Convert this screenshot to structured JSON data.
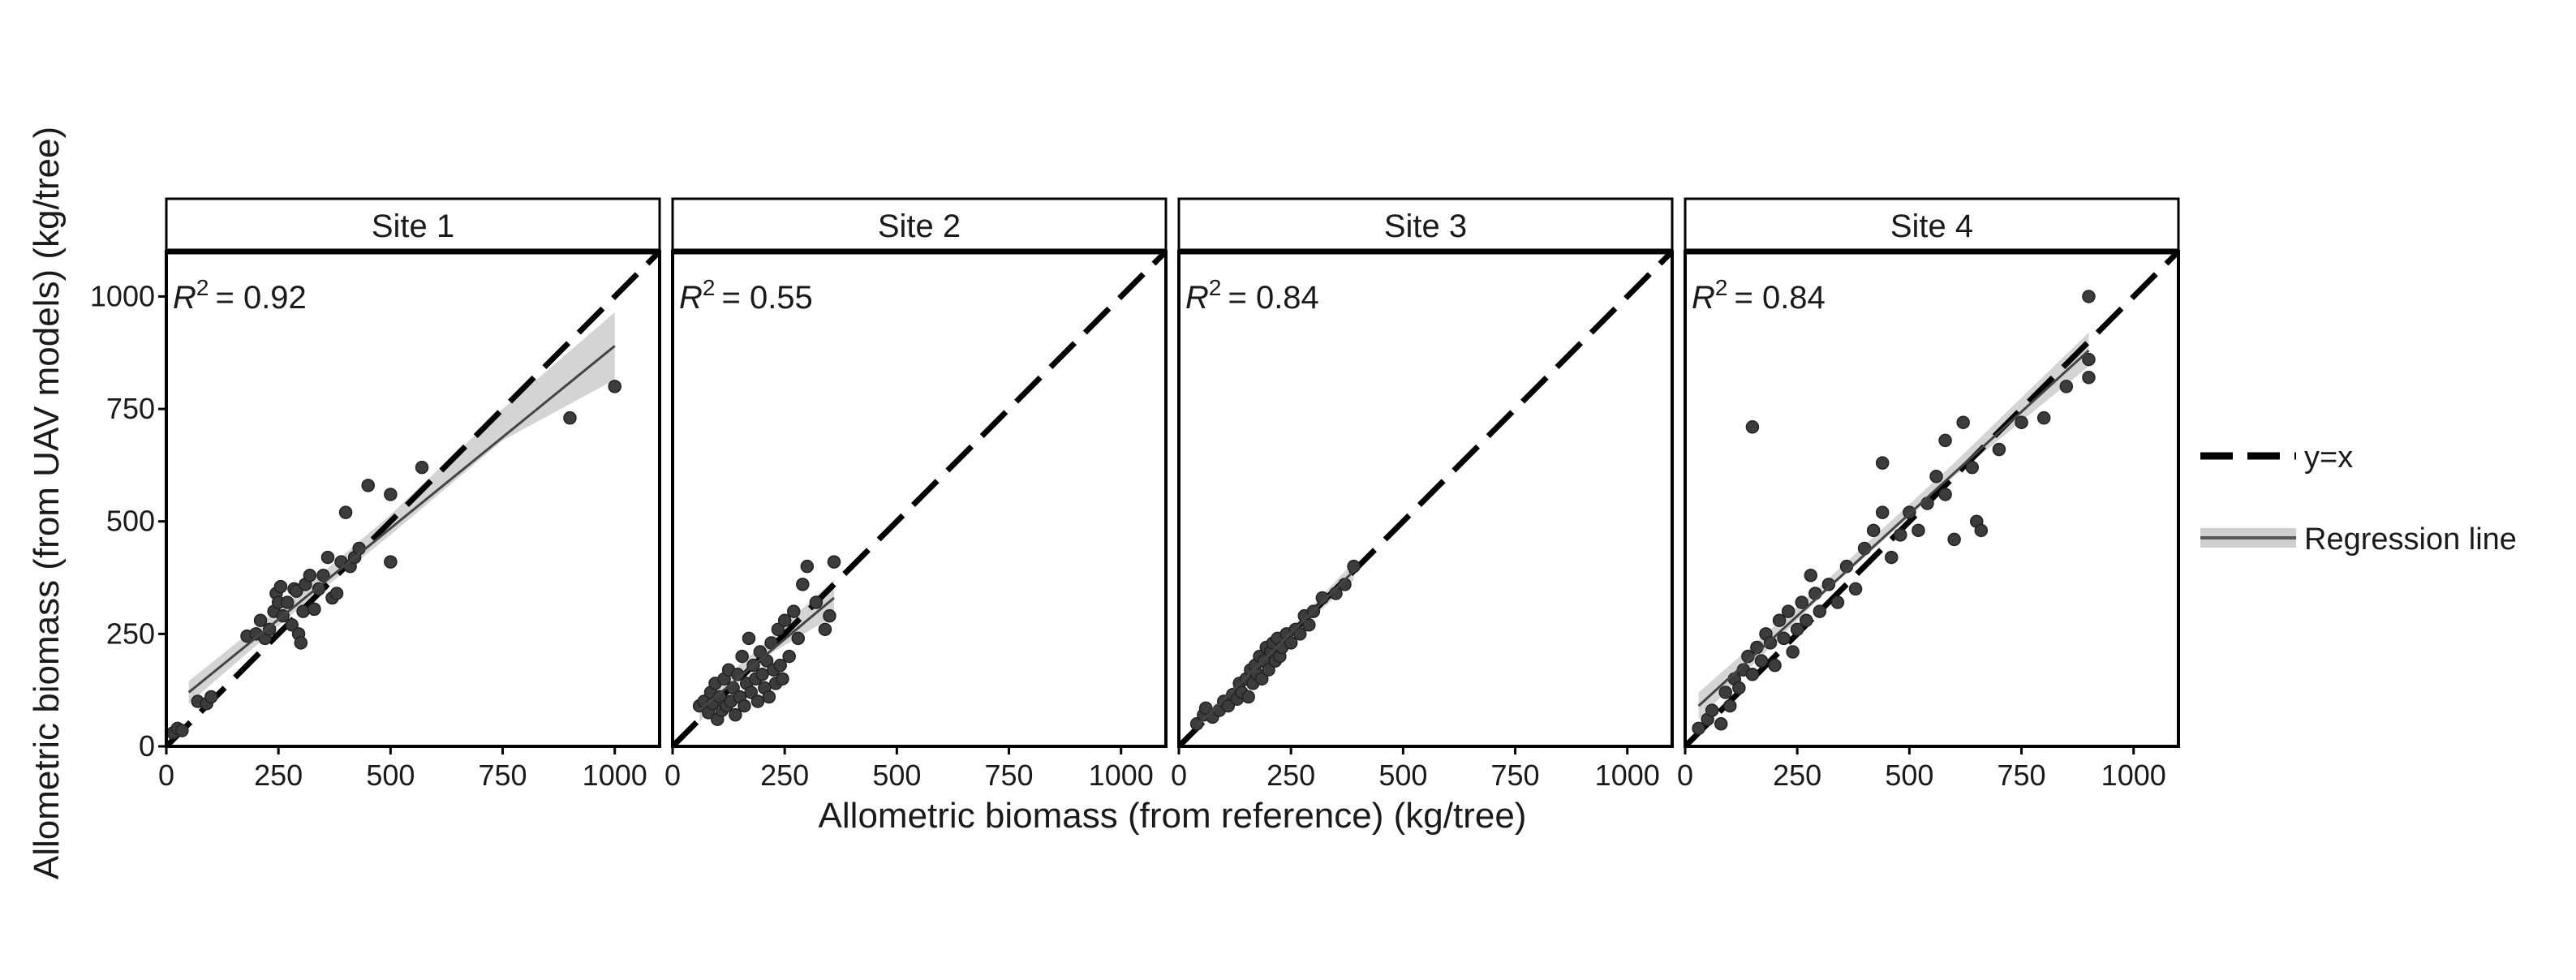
{
  "figure": {
    "xlabel": "Allometric biomass (from reference) (kg/tree)",
    "ylabel": "Allometric biomass (from UAV models) (kg/tree)",
    "legend": {
      "identity_label": "y=x",
      "regression_label": "Regression line",
      "placement": "right"
    }
  },
  "chart_data": [
    {
      "type": "scatter",
      "title": "Site 1",
      "r2_prefix": "R",
      "r2_exp": "2",
      "r2_value": "= 0.92",
      "xlim": [
        0,
        1100
      ],
      "ylim": [
        0,
        1100
      ],
      "xticks": [
        0,
        250,
        500,
        750,
        1000
      ],
      "yticks": [
        0,
        250,
        500,
        750,
        1000
      ],
      "regression": {
        "x1": 50,
        "y1": 120,
        "x2": 1000,
        "y2": 890,
        "band": [
          [
            50,
            95,
            145
          ],
          [
            300,
            310,
            345
          ],
          [
            500,
            470,
            515
          ],
          [
            750,
            680,
            750
          ],
          [
            1000,
            815,
            965
          ]
        ]
      },
      "points": [
        [
          15,
          30
        ],
        [
          25,
          40
        ],
        [
          35,
          35
        ],
        [
          70,
          100
        ],
        [
          90,
          95
        ],
        [
          100,
          110
        ],
        [
          180,
          245
        ],
        [
          200,
          250
        ],
        [
          210,
          280
        ],
        [
          220,
          240
        ],
        [
          230,
          260
        ],
        [
          240,
          300
        ],
        [
          245,
          340
        ],
        [
          250,
          320
        ],
        [
          255,
          355
        ],
        [
          260,
          290
        ],
        [
          270,
          320
        ],
        [
          280,
          270
        ],
        [
          285,
          350
        ],
        [
          290,
          345
        ],
        [
          295,
          250
        ],
        [
          300,
          230
        ],
        [
          305,
          300
        ],
        [
          310,
          360
        ],
        [
          320,
          380
        ],
        [
          330,
          305
        ],
        [
          340,
          350
        ],
        [
          350,
          380
        ],
        [
          360,
          420
        ],
        [
          370,
          330
        ],
        [
          380,
          340
        ],
        [
          390,
          410
        ],
        [
          400,
          520
        ],
        [
          410,
          400
        ],
        [
          420,
          420
        ],
        [
          430,
          440
        ],
        [
          450,
          580
        ],
        [
          500,
          560
        ],
        [
          500,
          410
        ],
        [
          570,
          620
        ],
        [
          900,
          730
        ],
        [
          1000,
          800
        ]
      ]
    },
    {
      "type": "scatter",
      "title": "Site 2",
      "r2_prefix": "R",
      "r2_exp": "2",
      "r2_value": "= 0.55",
      "xlim": [
        0,
        1100
      ],
      "ylim": [
        0,
        1100
      ],
      "xticks": [
        0,
        250,
        500,
        750,
        1000
      ],
      "yticks": [],
      "regression": {
        "x1": 60,
        "y1": 80,
        "x2": 360,
        "y2": 330,
        "band": [
          [
            60,
            55,
            105
          ],
          [
            200,
            195,
            225
          ],
          [
            360,
            290,
            370
          ]
        ]
      },
      "points": [
        [
          60,
          90
        ],
        [
          70,
          100
        ],
        [
          80,
          75
        ],
        [
          85,
          120
        ],
        [
          90,
          95
        ],
        [
          95,
          140
        ],
        [
          100,
          60
        ],
        [
          105,
          110
        ],
        [
          110,
          80
        ],
        [
          115,
          150
        ],
        [
          120,
          90
        ],
        [
          125,
          170
        ],
        [
          130,
          100
        ],
        [
          135,
          130
        ],
        [
          140,
          70
        ],
        [
          145,
          160
        ],
        [
          150,
          110
        ],
        [
          155,
          200
        ],
        [
          160,
          90
        ],
        [
          165,
          140
        ],
        [
          170,
          240
        ],
        [
          175,
          120
        ],
        [
          180,
          180
        ],
        [
          185,
          150
        ],
        [
          190,
          100
        ],
        [
          195,
          210
        ],
        [
          200,
          160
        ],
        [
          205,
          130
        ],
        [
          210,
          190
        ],
        [
          215,
          110
        ],
        [
          220,
          230
        ],
        [
          225,
          170
        ],
        [
          230,
          140
        ],
        [
          235,
          260
        ],
        [
          240,
          180
        ],
        [
          245,
          150
        ],
        [
          250,
          280
        ],
        [
          260,
          200
        ],
        [
          270,
          300
        ],
        [
          280,
          240
        ],
        [
          290,
          360
        ],
        [
          300,
          400
        ],
        [
          320,
          320
        ],
        [
          340,
          260
        ],
        [
          350,
          290
        ],
        [
          360,
          410
        ]
      ]
    },
    {
      "type": "scatter",
      "title": "Site 3",
      "r2_prefix": "R",
      "r2_exp": "2",
      "r2_value": "= 0.84",
      "xlim": [
        0,
        1100
      ],
      "ylim": [
        0,
        1100
      ],
      "xticks": [
        0,
        250,
        500,
        750,
        1000
      ],
      "yticks": [],
      "regression": {
        "x1": 40,
        "y1": 45,
        "x2": 390,
        "y2": 390,
        "band": [
          [
            40,
            35,
            55
          ],
          [
            200,
            195,
            210
          ],
          [
            390,
            370,
            410
          ]
        ]
      },
      "points": [
        [
          40,
          50
        ],
        [
          55,
          70
        ],
        [
          60,
          85
        ],
        [
          75,
          65
        ],
        [
          90,
          80
        ],
        [
          100,
          100
        ],
        [
          110,
          90
        ],
        [
          120,
          115
        ],
        [
          130,
          105
        ],
        [
          135,
          140
        ],
        [
          140,
          120
        ],
        [
          150,
          150
        ],
        [
          155,
          110
        ],
        [
          160,
          170
        ],
        [
          165,
          140
        ],
        [
          170,
          180
        ],
        [
          175,
          160
        ],
        [
          180,
          200
        ],
        [
          185,
          150
        ],
        [
          190,
          190
        ],
        [
          195,
          220
        ],
        [
          200,
          170
        ],
        [
          205,
          210
        ],
        [
          210,
          230
        ],
        [
          215,
          190
        ],
        [
          220,
          240
        ],
        [
          225,
          200
        ],
        [
          230,
          220
        ],
        [
          240,
          250
        ],
        [
          250,
          230
        ],
        [
          260,
          260
        ],
        [
          270,
          250
        ],
        [
          280,
          290
        ],
        [
          290,
          270
        ],
        [
          300,
          300
        ],
        [
          320,
          330
        ],
        [
          350,
          340
        ],
        [
          370,
          360
        ],
        [
          390,
          400
        ]
      ]
    },
    {
      "type": "scatter",
      "title": "Site 4",
      "r2_prefix": "R",
      "r2_exp": "2",
      "r2_value": "= 0.84",
      "xlim": [
        0,
        1100
      ],
      "ylim": [
        0,
        1100
      ],
      "xticks": [
        0,
        250,
        500,
        750,
        1000
      ],
      "yticks": [],
      "regression": {
        "x1": 30,
        "y1": 90,
        "x2": 900,
        "y2": 880,
        "band": [
          [
            30,
            60,
            120
          ],
          [
            300,
            330,
            355
          ],
          [
            600,
            600,
            630
          ],
          [
            900,
            845,
            920
          ]
        ]
      },
      "points": [
        [
          30,
          40
        ],
        [
          50,
          60
        ],
        [
          60,
          80
        ],
        [
          80,
          50
        ],
        [
          90,
          120
        ],
        [
          100,
          90
        ],
        [
          110,
          150
        ],
        [
          120,
          130
        ],
        [
          130,
          170
        ],
        [
          140,
          200
        ],
        [
          150,
          160
        ],
        [
          150,
          710
        ],
        [
          160,
          220
        ],
        [
          170,
          190
        ],
        [
          180,
          250
        ],
        [
          190,
          230
        ],
        [
          200,
          180
        ],
        [
          210,
          280
        ],
        [
          220,
          240
        ],
        [
          230,
          300
        ],
        [
          240,
          210
        ],
        [
          250,
          260
        ],
        [
          260,
          320
        ],
        [
          270,
          280
        ],
        [
          280,
          380
        ],
        [
          290,
          340
        ],
        [
          300,
          300
        ],
        [
          320,
          360
        ],
        [
          340,
          320
        ],
        [
          360,
          400
        ],
        [
          380,
          350
        ],
        [
          400,
          440
        ],
        [
          420,
          480
        ],
        [
          440,
          520
        ],
        [
          440,
          630
        ],
        [
          460,
          420
        ],
        [
          480,
          470
        ],
        [
          500,
          520
        ],
        [
          520,
          480
        ],
        [
          540,
          540
        ],
        [
          560,
          600
        ],
        [
          580,
          560
        ],
        [
          580,
          680
        ],
        [
          600,
          460
        ],
        [
          620,
          720
        ],
        [
          640,
          620
        ],
        [
          650,
          500
        ],
        [
          660,
          480
        ],
        [
          700,
          660
        ],
        [
          750,
          720
        ],
        [
          800,
          730
        ],
        [
          850,
          800
        ],
        [
          900,
          1000
        ],
        [
          900,
          860
        ],
        [
          900,
          820
        ]
      ]
    }
  ]
}
